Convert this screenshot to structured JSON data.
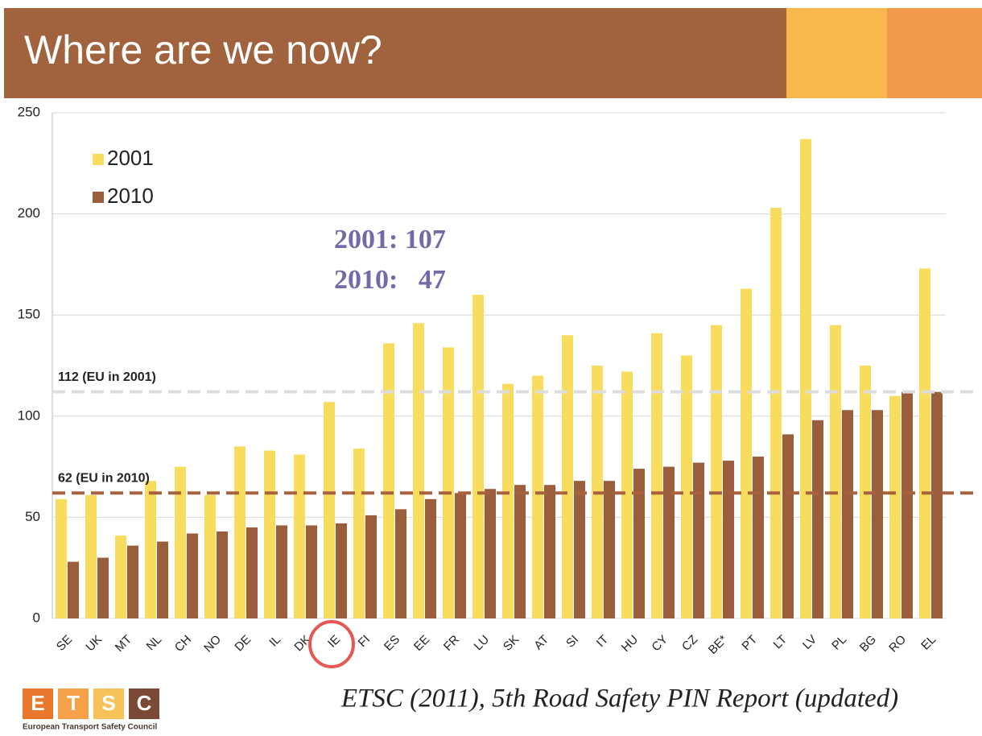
{
  "chart_data": {
    "type": "bar",
    "title": "Where are we now?",
    "categories": [
      "SE",
      "UK",
      "MT",
      "NL",
      "CH",
      "NO",
      "DE",
      "IL",
      "DK",
      "IE",
      "FI",
      "ES",
      "EE",
      "FR",
      "LU",
      "SK",
      "AT",
      "SI",
      "IT",
      "HU",
      "CY",
      "CZ",
      "BE*",
      "PT",
      "LT",
      "LV",
      "PL",
      "BG",
      "RO",
      "EL"
    ],
    "series": [
      {
        "name": "2001",
        "color": "#f7dc5e",
        "values": [
          59,
          61,
          41,
          68,
          75,
          61,
          85,
          83,
          81,
          107,
          84,
          136,
          146,
          134,
          160,
          116,
          120,
          140,
          125,
          122,
          141,
          130,
          145,
          163,
          203,
          237,
          145,
          125,
          110,
          173
        ]
      },
      {
        "name": "2010",
        "color": "#9b5e3d",
        "values": [
          28,
          30,
          36,
          38,
          42,
          43,
          45,
          46,
          46,
          47,
          51,
          54,
          59,
          62,
          64,
          66,
          66,
          68,
          68,
          74,
          75,
          77,
          78,
          80,
          91,
          98,
          103,
          103,
          112,
          112
        ]
      }
    ],
    "ylim": [
      0,
      250
    ],
    "yticks": [
      0,
      50,
      100,
      150,
      200,
      250
    ],
    "grid": true,
    "legend": "upper left",
    "reference_lines": [
      {
        "value": 112,
        "label": "112 (EU in 2001)",
        "color": "#dddddd"
      },
      {
        "value": 62,
        "label": "62 (EU in 2010)",
        "color": "#a8623f"
      }
    ],
    "annotations": [
      "2001: 107",
      "2010:   47"
    ],
    "source": "ETSC (2011), 5th Road Safety PIN Report (updated)",
    "logo_letters": [
      "E",
      "T",
      "S",
      "C"
    ],
    "logo_caption": "European Transport Safety Council"
  }
}
